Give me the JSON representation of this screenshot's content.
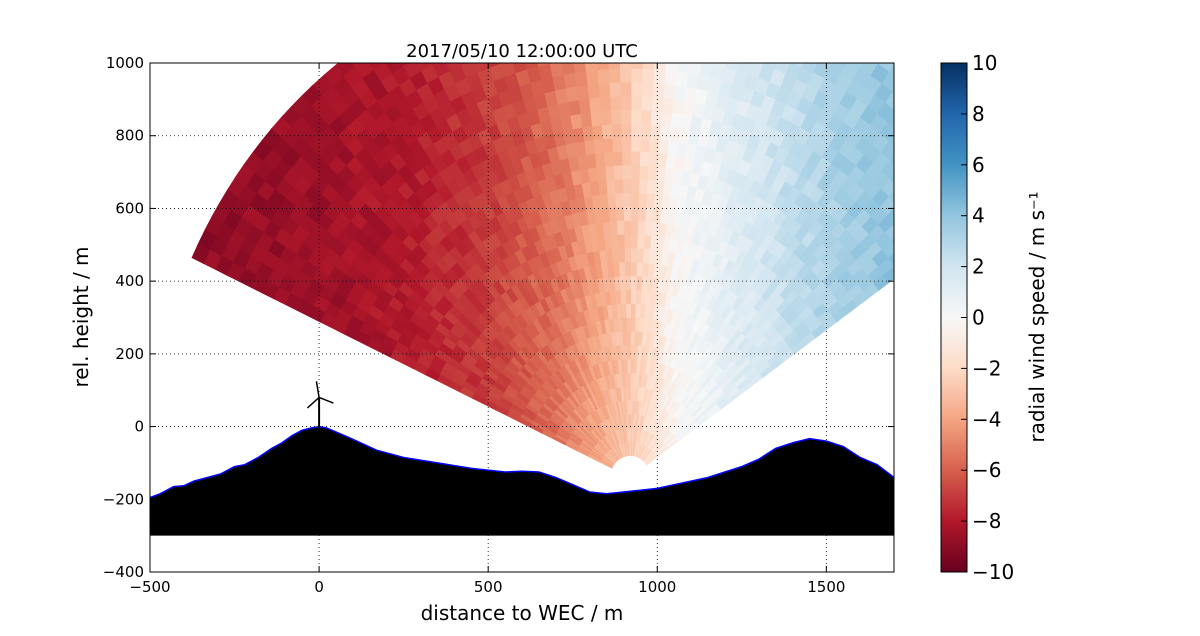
{
  "chart_data": {
    "type": "heatmap",
    "title": "2017/05/10 12:00:00 UTC",
    "xlabel": "distance to WEC / m",
    "ylabel": "rel. height / m",
    "xlim": [
      -500,
      1700
    ],
    "ylim": [
      -400,
      1000
    ],
    "xticks": [
      -500,
      0,
      500,
      1000,
      1500
    ],
    "yticks": [
      -400,
      -200,
      0,
      200,
      400,
      600,
      800,
      1000
    ],
    "xtick_labels": [
      "−500",
      "0",
      "500",
      "1000",
      "1500"
    ],
    "ytick_labels": [
      "−400",
      "−200",
      "0",
      "200",
      "400",
      "600",
      "800",
      "1000"
    ],
    "grid": true,
    "colorbar": {
      "label": "radial wind speed / m s⁻¹",
      "range": [
        -10,
        10
      ],
      "ticks": [
        -10,
        -8,
        -6,
        -4,
        -2,
        0,
        2,
        4,
        6,
        8,
        10
      ],
      "tick_labels": [
        "−10",
        "−8",
        "−6",
        "−4",
        "−2",
        "0",
        "2",
        "4",
        "6",
        "8",
        "10"
      ],
      "colormap": "RdBu",
      "colors": [
        "#67001f",
        "#b2182b",
        "#d6604d",
        "#f4a582",
        "#fddbc7",
        "#f7f7f7",
        "#d1e5f0",
        "#92c5de",
        "#4393c3",
        "#2166ac",
        "#053061"
      ]
    },
    "scan": {
      "lidar_origin": [
        920,
        -140
      ],
      "range_max": 1430,
      "angle_min_deg": 35,
      "angle_max_deg": 155,
      "range_min": 60
    },
    "radial_speed_profile": [
      {
        "x": -400,
        "v": -9.0
      },
      {
        "x": 0,
        "v": -8.6
      },
      {
        "x": 250,
        "v": -8.0
      },
      {
        "x": 500,
        "v": -7.0
      },
      {
        "x": 700,
        "v": -5.5
      },
      {
        "x": 850,
        "v": -3.6
      },
      {
        "x": 950,
        "v": -2.2
      },
      {
        "x": 1050,
        "v": -0.2
      },
      {
        "x": 1200,
        "v": 1.0
      },
      {
        "x": 1400,
        "v": 2.5
      },
      {
        "x": 1550,
        "v": 3.5
      },
      {
        "x": 1700,
        "v": 4.0
      }
    ],
    "terrain": {
      "x": [
        -500,
        -470,
        -430,
        -400,
        -370,
        -330,
        -290,
        -250,
        -220,
        -180,
        -140,
        -110,
        -80,
        -50,
        -20,
        0,
        20,
        50,
        100,
        170,
        250,
        350,
        450,
        550,
        600,
        650,
        700,
        750,
        800,
        850,
        900,
        950,
        1000,
        1050,
        1100,
        1150,
        1200,
        1250,
        1300,
        1350,
        1400,
        1450,
        1500,
        1550,
        1600,
        1650,
        1700
      ],
      "y": [
        -195,
        -185,
        -165,
        -163,
        -150,
        -140,
        -130,
        -110,
        -105,
        -85,
        -60,
        -45,
        -25,
        -10,
        -3,
        0,
        -3,
        -15,
        -35,
        -65,
        -85,
        -100,
        -115,
        -125,
        -123,
        -125,
        -140,
        -160,
        -180,
        -185,
        -180,
        -175,
        -170,
        -160,
        -150,
        -140,
        -125,
        -110,
        -90,
        -60,
        -45,
        -33,
        -40,
        -55,
        -85,
        -105,
        -140
      ],
      "fill": "#000000",
      "edge": "#0000ff",
      "base": -300
    },
    "turbine": {
      "x": 0,
      "hub_height": 80,
      "rotor_radius": 45
    }
  }
}
